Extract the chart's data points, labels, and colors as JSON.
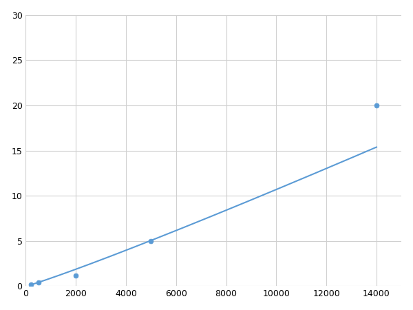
{
  "x": [
    200,
    500,
    2000,
    5000,
    14000
  ],
  "y": [
    0.2,
    0.4,
    1.2,
    5.0,
    20.0
  ],
  "line_color": "#5b9bd5",
  "marker_color": "#5b9bd5",
  "marker_size": 5,
  "line_width": 1.5,
  "xlim": [
    0,
    15000
  ],
  "ylim": [
    0,
    30
  ],
  "xticks": [
    0,
    2000,
    4000,
    6000,
    8000,
    10000,
    12000,
    14000
  ],
  "yticks": [
    0,
    5,
    10,
    15,
    20,
    25,
    30
  ],
  "grid_color": "#d0d0d0",
  "background_color": "#ffffff",
  "fig_width": 6.0,
  "fig_height": 4.5,
  "dpi": 100
}
